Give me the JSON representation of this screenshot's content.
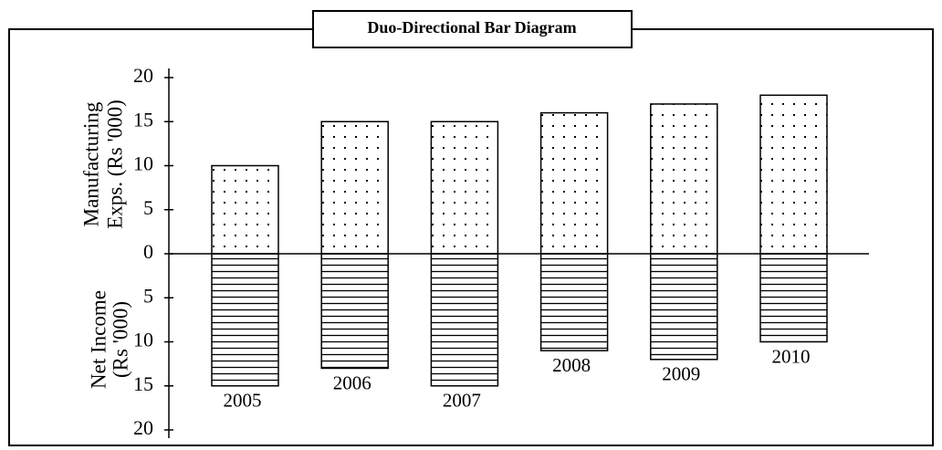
{
  "chart_data": {
    "type": "duo_directional_bar",
    "title": "Duo-Directional Bar Diagram",
    "y_label_up": [
      "Manufacturing",
      "Exps. (Rs '000)"
    ],
    "y_label_down": [
      "Net Income",
      "(Rs '000)"
    ],
    "categories": [
      "2005",
      "2006",
      "2007",
      "2008",
      "2009",
      "2010"
    ],
    "series": [
      {
        "color": "#000000",
        "values": [
          10,
          15,
          15,
          16,
          17,
          18
        ]
      },
      {
        "color": "#000000",
        "values": [
          15,
          13,
          15,
          11,
          12,
          10
        ]
      }
    ],
    "ylim": [
      -20,
      20
    ],
    "yticks": [
      {
        "value": -20,
        "label": "20"
      },
      {
        "value": -15,
        "label": "15"
      },
      {
        "value": -10,
        "label": "10"
      },
      {
        "value": -5,
        "label": "5"
      },
      0,
      5,
      10,
      15,
      20
    ]
  }
}
